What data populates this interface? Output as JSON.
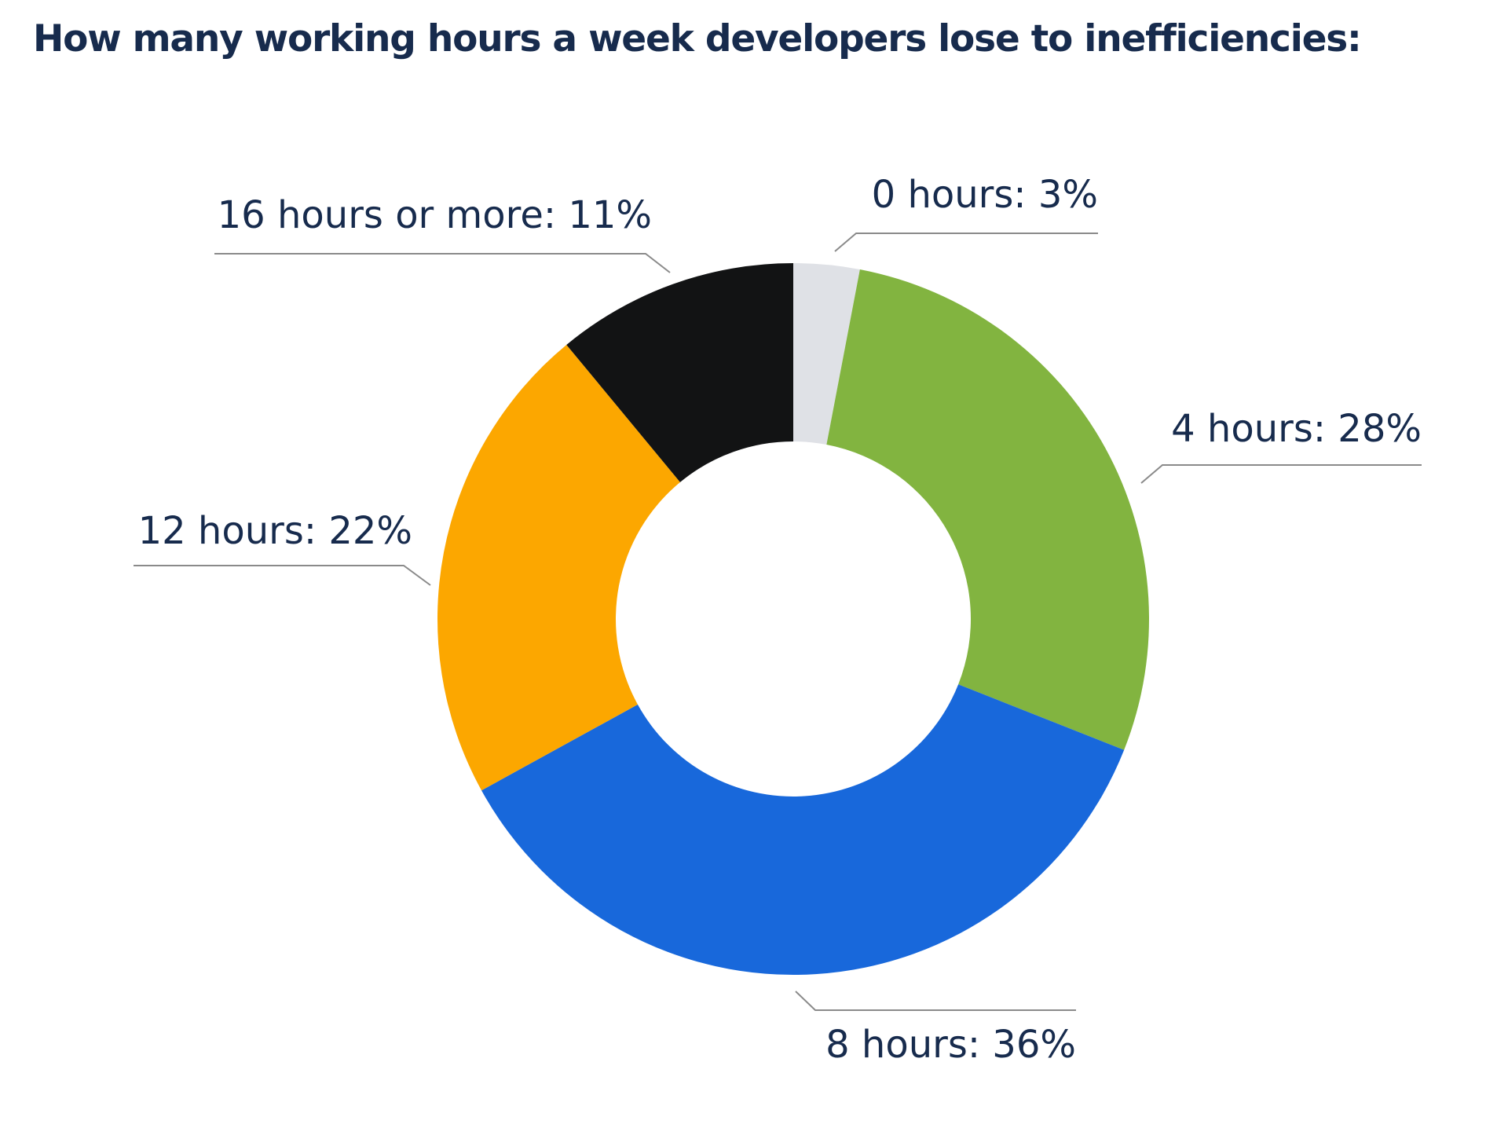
{
  "chart_data": {
    "type": "pie",
    "variant": "donut",
    "title": "How many working hours a week developers lose to inefficiencies:",
    "slices": [
      {
        "label": "0 hours: 3%",
        "category": "0 hours",
        "value": 3,
        "color": "#dfe1e6"
      },
      {
        "label": "4 hours: 28%",
        "category": "4 hours",
        "value": 28,
        "color": "#82b440"
      },
      {
        "label": "8 hours: 36%",
        "category": "8 hours",
        "value": 36,
        "color": "#1868db"
      },
      {
        "label": "12 hours: 22%",
        "category": "12 hours",
        "value": 22,
        "color": "#fca700"
      },
      {
        "label": "16 hours or more: 11%",
        "category": "16 hours or more",
        "value": 11,
        "color": "#121314"
      }
    ],
    "start_angle": "12 o'clock",
    "direction": "clockwise",
    "legend": "none",
    "data_labels": "outside"
  }
}
